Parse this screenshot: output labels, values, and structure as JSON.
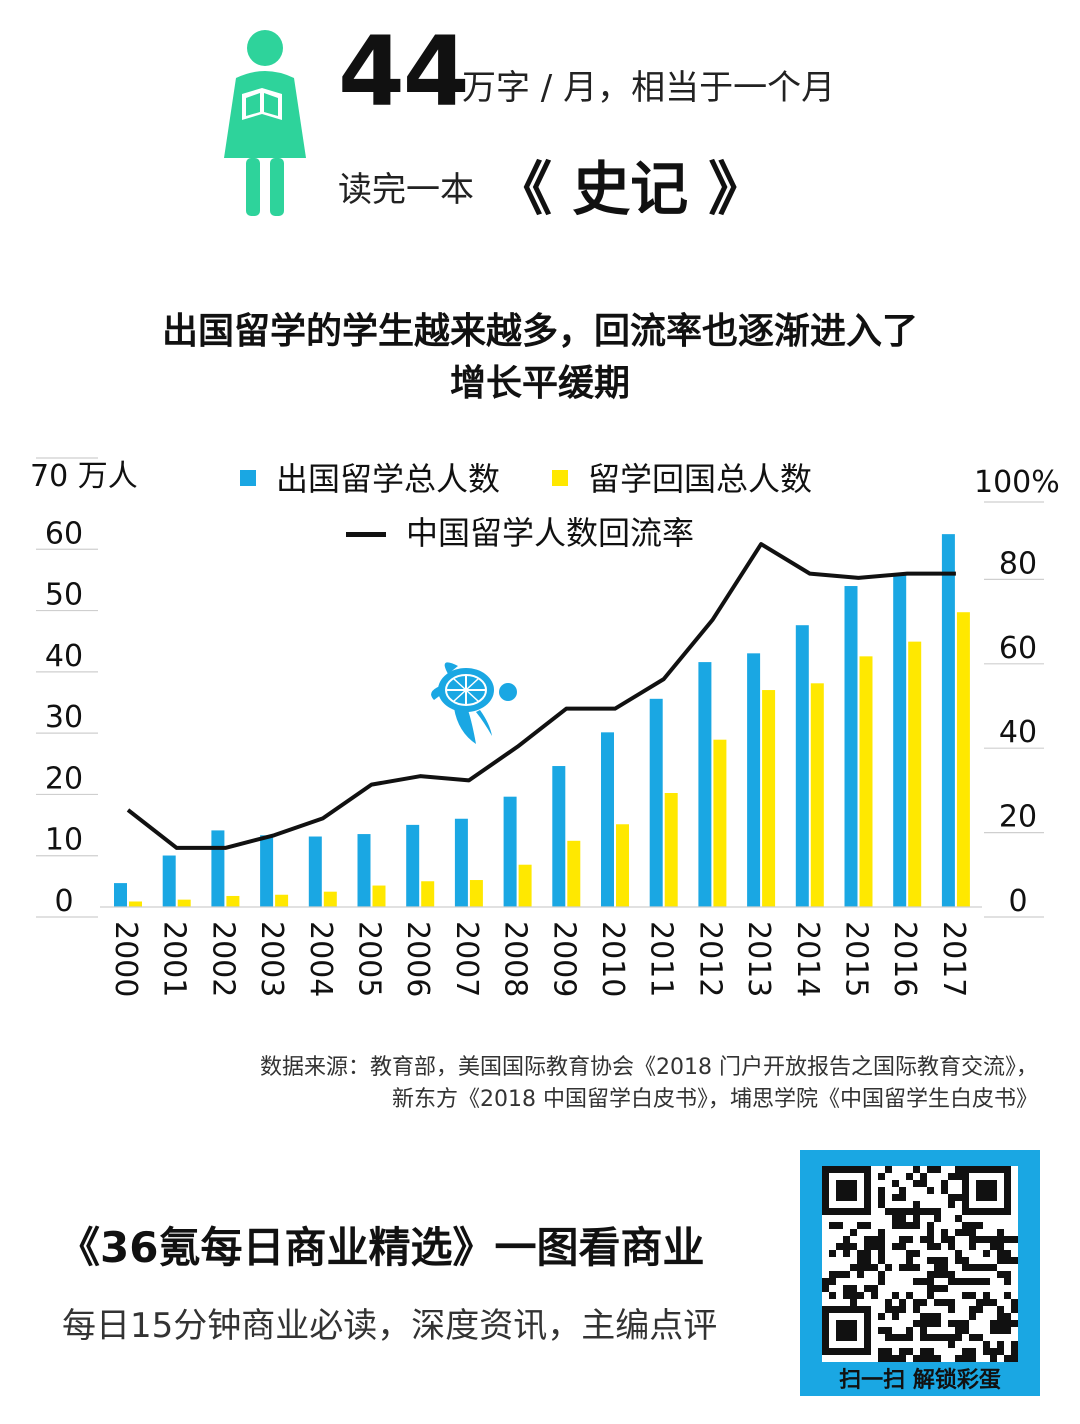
{
  "header": {
    "number": "44",
    "line1": "万字 / 月，相当于一个月",
    "line2_prefix": "读完一本",
    "book": "《 史记 》",
    "icons": {
      "figure": "reading-woman-icon",
      "turtle": "sea-turtle-icon"
    }
  },
  "chart_title": [
    "出国留学的学生越来越多，回流率也逐渐进入了",
    "增长平缓期"
  ],
  "chart_data": {
    "type": "bar",
    "categories": [
      "2000",
      "2001",
      "2002",
      "2003",
      "2004",
      "2005",
      "2006",
      "2007",
      "2008",
      "2009",
      "2010",
      "2011",
      "2012",
      "2013",
      "2014",
      "2015",
      "2016",
      "2017"
    ],
    "series": [
      {
        "name": "出国留学总人数",
        "type": "bar",
        "axis": "left",
        "color": "#1aa7e3",
        "values": [
          3.9,
          8.4,
          12.5,
          11.7,
          11.5,
          11.9,
          13.4,
          14.4,
          18.0,
          23.0,
          28.5,
          33.97,
          39.96,
          41.39,
          45.98,
          52.37,
          54.45,
          60.84
        ]
      },
      {
        "name": "留学回国总人数",
        "type": "bar",
        "axis": "left",
        "color": "#ffe800",
        "values": [
          0.9,
          1.2,
          1.8,
          2.0,
          2.5,
          3.5,
          4.2,
          4.4,
          6.9,
          10.8,
          13.5,
          18.6,
          27.3,
          35.4,
          36.5,
          40.9,
          43.3,
          48.1
        ]
      },
      {
        "name": "中国留学人数回流率",
        "type": "line",
        "axis": "right",
        "color": "#111111",
        "values": [
          23,
          14,
          14,
          17,
          21,
          29,
          31,
          30,
          38,
          47,
          47,
          54,
          68,
          86,
          79,
          78,
          79,
          79
        ]
      }
    ],
    "y_left": {
      "label": "70 万人",
      "ylim": [
        0,
        70
      ],
      "ticks": [
        "0",
        "10",
        "20",
        "30",
        "40",
        "50",
        "60"
      ]
    },
    "y_right": {
      "label": "100%",
      "ylim": [
        0,
        100
      ],
      "ticks": [
        "0",
        "20",
        "40",
        "60",
        "80"
      ]
    },
    "legend_position": "top-center",
    "grid": true
  },
  "source": [
    "数据来源：教育部，美国国际教育协会《2018 门户开放报告之国际教育交流》，",
    "新东方《2018 中国留学白皮书》，埔思学院《中国留学生白皮书》"
  ],
  "promo": {
    "title": "《36氪每日商业精选》一图看商业",
    "subtitle": "每日15分钟商业必读，深度资讯，主编点评",
    "qr_caption": "扫一扫 解锁彩蛋"
  },
  "colors": {
    "accent_green": "#2ed39b",
    "blue": "#1aa7e3",
    "yellow": "#ffe800"
  }
}
